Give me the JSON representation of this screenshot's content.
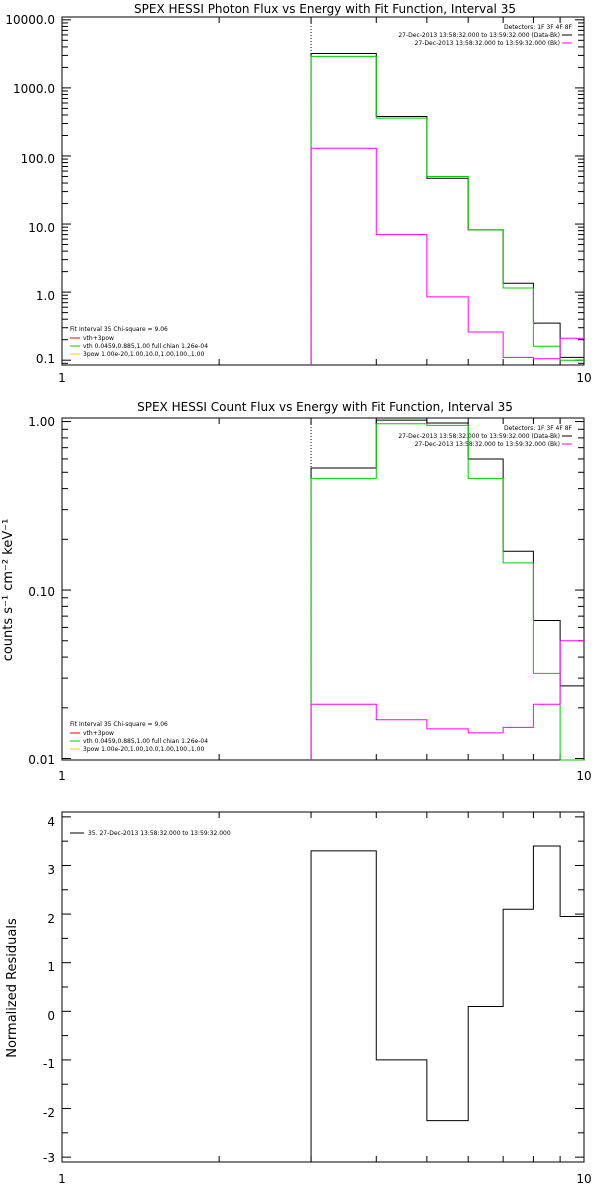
{
  "chart_data": [
    {
      "type": "line",
      "step": true,
      "title": "SPEX HESSI Photon Flux vs Energy with Fit Function, Interval 35",
      "xlabel": "",
      "ylabel": "",
      "xscale": "log",
      "yscale": "log",
      "xlim": [
        1,
        10
      ],
      "ylim": [
        0.085,
        11000
      ],
      "xticks": [
        1,
        10
      ],
      "xtick_labels": [
        "1",
        "10"
      ],
      "yticks": [
        0.1,
        1,
        10,
        100,
        1000,
        10000
      ],
      "ytick_labels": [
        "0.1",
        "1.0",
        "10.0",
        "100.0",
        "1000.0",
        "10000.0"
      ],
      "x_marker": 3,
      "legend_tr": {
        "header": "Detectors: 1F 3F 4F 8F",
        "entries": [
          {
            "label": "27-Dec-2013 13:58:32.000 to 13:59:32.000 (Data-Bk)",
            "color": "#000000"
          },
          {
            "label": "27-Dec-2013 13:58:32.000 to 13:59:32.000 (Bk)",
            "color": "#ff00ff"
          }
        ]
      },
      "legend_bl": {
        "header": "Fit Interval 35   Chi-square = 9.06",
        "entries": [
          {
            "label": "vth+3pow",
            "color": "#ff0000"
          },
          {
            "label": "vth 0.0459,0.885,1.00  full chian 1.26e-04",
            "color": "#00cc00"
          },
          {
            "label": "3pow 1.00e-20,1.00,10.0,1.00,100.,1.00",
            "color": "#ffcc00"
          }
        ]
      },
      "x_edges": [
        3,
        4,
        5,
        6,
        7,
        8,
        9,
        10
      ],
      "series": [
        {
          "color": "#000000",
          "values": [
            3200,
            380,
            47,
            8.2,
            1.35,
            0.35,
            0.11
          ]
        },
        {
          "color": "#00cc00",
          "values": [
            2900,
            360,
            50,
            8.2,
            1.15,
            0.16,
            0.1
          ]
        },
        {
          "color": "#ff00ff",
          "values": [
            130,
            7,
            0.85,
            0.26,
            0.11,
            0.105,
            0.21
          ]
        }
      ]
    },
    {
      "type": "line",
      "step": true,
      "title": "SPEX HESSI Count Flux vs Energy with Fit Function, Interval 35",
      "xlabel": "",
      "ylabel": "counts s⁻¹ cm⁻² keV⁻¹",
      "xscale": "log",
      "yscale": "log",
      "xlim": [
        1,
        10
      ],
      "ylim": [
        0.0098,
        1.05
      ],
      "xticks": [
        1,
        10
      ],
      "xtick_labels": [
        "1",
        "10"
      ],
      "yticks": [
        0.01,
        0.1,
        1
      ],
      "ytick_labels": [
        "0.01",
        "0.10",
        "1.00"
      ],
      "x_marker": 3,
      "legend_tr": {
        "header": "Detectors: 1F 3F 4F 8F",
        "entries": [
          {
            "label": "27-Dec-2013 13:58:32.000 to 13:59:32.000 (Data-Bk)",
            "color": "#000000"
          },
          {
            "label": "27-Dec-2013 13:58:32.000 to 13:59:32.000 (Bk)",
            "color": "#ff00ff"
          }
        ]
      },
      "legend_bl": {
        "header": "Fit Interval 35   Chi-square = 9.06",
        "entries": [
          {
            "label": "vth+3pow",
            "color": "#ff0000"
          },
          {
            "label": "vth 0.0459,0.885,1.00  full chian 1.26e-04",
            "color": "#00cc00"
          },
          {
            "label": "3pow 1.00e-20,1.00,10.0,1.00,100.,1.00",
            "color": "#ffcc00"
          }
        ]
      },
      "x_edges": [
        3,
        4,
        5,
        6,
        7,
        8,
        9,
        10
      ],
      "series": [
        {
          "color": "#000000",
          "values": [
            0.53,
            1.02,
            0.98,
            0.6,
            0.17,
            0.066,
            0.027
          ]
        },
        {
          "color": "#00cc00",
          "values": [
            0.46,
            0.97,
            0.95,
            0.46,
            0.145,
            0.032,
            0.0095
          ]
        },
        {
          "color": "#ff00ff",
          "values": [
            0.021,
            0.017,
            0.015,
            0.0142,
            0.0153,
            0.021,
            0.05
          ]
        }
      ]
    },
    {
      "type": "line",
      "step": true,
      "title": "",
      "xlabel": "",
      "ylabel": "Normalized Residuals",
      "xscale": "log",
      "yscale": "linear",
      "xlim": [
        1,
        10
      ],
      "ylim": [
        -3.1,
        4.1
      ],
      "xticks": [
        1,
        10
      ],
      "xtick_labels": [
        "1",
        "10"
      ],
      "yticks": [
        -3,
        -2,
        -1,
        0,
        1,
        2,
        3,
        4
      ],
      "ytick_labels": [
        "-3",
        "-2",
        "-1",
        "0",
        "1",
        "2",
        "3",
        "4"
      ],
      "legend_tl": {
        "entries": [
          {
            "label": "35. 27-Dec-2013 13:58:32.000 to 13:59:32.000",
            "color": "#000000"
          }
        ]
      },
      "x_edges": [
        3,
        4,
        5,
        6,
        7,
        8,
        9,
        10
      ],
      "series": [
        {
          "color": "#000000",
          "values": [
            3.3,
            -1.0,
            -2.25,
            0.1,
            2.1,
            3.4,
            1.95
          ]
        }
      ]
    }
  ]
}
